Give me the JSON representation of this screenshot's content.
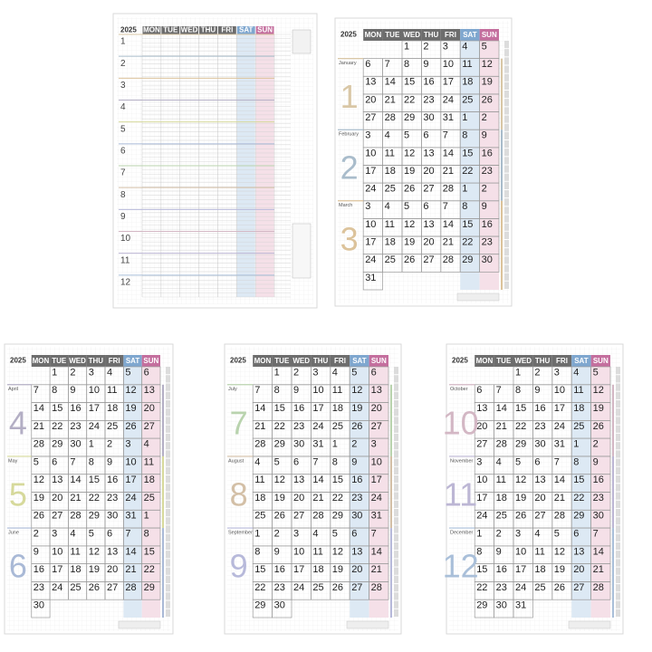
{
  "year_sheet": {
    "year": "2025",
    "weekdays": [
      "MON",
      "TUE",
      "WED",
      "THU",
      "FRI",
      "SAT",
      "SUN"
    ],
    "months": [
      "1",
      "2",
      "3",
      "4",
      "5",
      "6",
      "7",
      "8",
      "9",
      "10",
      "11",
      "12"
    ]
  },
  "quarter_sheets": [
    {
      "year": "2025",
      "weekdays": [
        "MON",
        "TUE",
        "WED",
        "THU",
        "FRI",
        "SAT",
        "SUN"
      ],
      "months": [
        {
          "number": "1",
          "name": "January",
          "color": "#d9c7a6"
        },
        {
          "number": "2",
          "name": "February",
          "color": "#a9bccb"
        },
        {
          "number": "3",
          "name": "March",
          "color": "#dcc39b"
        }
      ],
      "rows": [
        [
          null,
          null,
          1,
          2,
          3,
          4,
          5
        ],
        [
          6,
          7,
          8,
          9,
          10,
          11,
          12
        ],
        [
          13,
          14,
          15,
          16,
          17,
          18,
          19
        ],
        [
          20,
          21,
          22,
          23,
          24,
          25,
          26
        ],
        [
          27,
          28,
          29,
          30,
          31,
          1,
          2
        ],
        [
          3,
          4,
          5,
          6,
          7,
          8,
          9
        ],
        [
          10,
          11,
          12,
          13,
          14,
          15,
          16
        ],
        [
          17,
          18,
          19,
          20,
          21,
          22,
          23
        ],
        [
          24,
          25,
          26,
          27,
          28,
          1,
          2
        ],
        [
          3,
          4,
          5,
          6,
          7,
          8,
          9
        ],
        [
          10,
          11,
          12,
          13,
          14,
          15,
          16
        ],
        [
          17,
          18,
          19,
          20,
          21,
          22,
          23
        ],
        [
          24,
          25,
          26,
          27,
          28,
          29,
          30
        ],
        [
          31,
          null,
          null,
          null,
          null,
          null,
          null
        ]
      ]
    },
    {
      "year": "2025",
      "weekdays": [
        "MON",
        "TUE",
        "WED",
        "THU",
        "FRI",
        "SAT",
        "SUN"
      ],
      "months": [
        {
          "number": "4",
          "name": "April",
          "color": "#b3aec4"
        },
        {
          "number": "5",
          "name": "May",
          "color": "#d6d99b"
        },
        {
          "number": "6",
          "name": "June",
          "color": "#a9b9d6"
        }
      ],
      "rows": [
        [
          null,
          1,
          2,
          3,
          4,
          5,
          6
        ],
        [
          7,
          8,
          9,
          10,
          11,
          12,
          13
        ],
        [
          14,
          15,
          16,
          17,
          18,
          19,
          20
        ],
        [
          21,
          22,
          23,
          24,
          25,
          26,
          27
        ],
        [
          28,
          29,
          30,
          1,
          2,
          3,
          4
        ],
        [
          5,
          6,
          7,
          8,
          9,
          10,
          11
        ],
        [
          12,
          13,
          14,
          15,
          16,
          17,
          18
        ],
        [
          19,
          20,
          21,
          22,
          23,
          24,
          25
        ],
        [
          26,
          27,
          28,
          29,
          30,
          31,
          1
        ],
        [
          2,
          3,
          4,
          5,
          6,
          7,
          8
        ],
        [
          9,
          10,
          11,
          12,
          13,
          14,
          15
        ],
        [
          16,
          17,
          18,
          19,
          20,
          21,
          22
        ],
        [
          23,
          24,
          25,
          26,
          27,
          28,
          29
        ],
        [
          30,
          null,
          null,
          null,
          null,
          null,
          null
        ]
      ]
    },
    {
      "year": "2025",
      "weekdays": [
        "MON",
        "TUE",
        "WED",
        "THU",
        "FRI",
        "SAT",
        "SUN"
      ],
      "months": [
        {
          "number": "7",
          "name": "July",
          "color": "#b9d3ae"
        },
        {
          "number": "8",
          "name": "August",
          "color": "#d3bfa6"
        },
        {
          "number": "9",
          "name": "September",
          "color": "#b7b9da"
        }
      ],
      "rows": [
        [
          null,
          1,
          2,
          3,
          4,
          5,
          6
        ],
        [
          7,
          8,
          9,
          10,
          11,
          12,
          13
        ],
        [
          14,
          15,
          16,
          17,
          18,
          19,
          20
        ],
        [
          21,
          22,
          23,
          24,
          25,
          26,
          27
        ],
        [
          28,
          29,
          30,
          31,
          1,
          2,
          3
        ],
        [
          4,
          5,
          6,
          7,
          8,
          9,
          10
        ],
        [
          11,
          12,
          13,
          14,
          15,
          16,
          17
        ],
        [
          18,
          19,
          20,
          21,
          22,
          23,
          24
        ],
        [
          25,
          26,
          27,
          28,
          29,
          30,
          31
        ],
        [
          1,
          2,
          3,
          4,
          5,
          6,
          7
        ],
        [
          8,
          9,
          10,
          11,
          12,
          13,
          14
        ],
        [
          15,
          16,
          17,
          18,
          19,
          20,
          21
        ],
        [
          22,
          23,
          24,
          25,
          26,
          27,
          28
        ],
        [
          29,
          30,
          null,
          null,
          null,
          null,
          null
        ]
      ]
    },
    {
      "year": "2025",
      "weekdays": [
        "MON",
        "TUE",
        "WED",
        "THU",
        "FRI",
        "SAT",
        "SUN"
      ],
      "months": [
        {
          "number": "10",
          "name": "October",
          "color": "#d3b7c4"
        },
        {
          "number": "11",
          "name": "November",
          "color": "#bcb6d4"
        },
        {
          "number": "12",
          "name": "December",
          "color": "#a9bfd9"
        }
      ],
      "rows": [
        [
          null,
          null,
          1,
          2,
          3,
          4,
          5
        ],
        [
          6,
          7,
          8,
          9,
          10,
          11,
          12
        ],
        [
          13,
          14,
          15,
          16,
          17,
          18,
          19
        ],
        [
          20,
          21,
          22,
          23,
          24,
          25,
          26
        ],
        [
          27,
          28,
          29,
          30,
          31,
          1,
          2
        ],
        [
          3,
          4,
          5,
          6,
          7,
          8,
          9
        ],
        [
          10,
          11,
          12,
          13,
          14,
          15,
          16
        ],
        [
          17,
          18,
          19,
          20,
          21,
          22,
          23
        ],
        [
          24,
          25,
          26,
          27,
          28,
          29,
          30
        ],
        [
          1,
          2,
          3,
          4,
          5,
          6,
          7
        ],
        [
          8,
          9,
          10,
          11,
          12,
          13,
          14
        ],
        [
          15,
          16,
          17,
          18,
          19,
          20,
          21
        ],
        [
          22,
          23,
          24,
          25,
          26,
          27,
          28
        ],
        [
          29,
          30,
          31,
          null,
          null,
          null,
          null
        ]
      ]
    }
  ]
}
